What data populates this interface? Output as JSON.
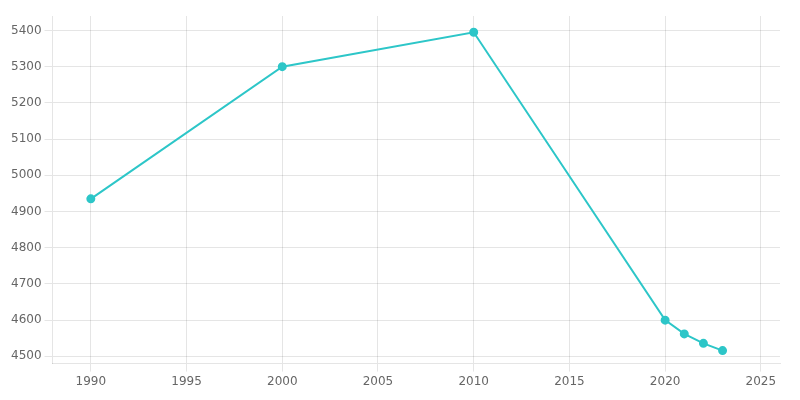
{
  "chart_data": {
    "type": "line",
    "x": [
      1990,
      2000,
      2010,
      2020,
      2021,
      2022,
      2023
    ],
    "values": [
      4935,
      5300,
      5395,
      4600,
      4562,
      4536,
      4516
    ],
    "color": "#2DC6C8",
    "marker": "circle",
    "xlim": [
      1988,
      2026
    ],
    "ylim": [
      4480,
      5440
    ],
    "xticks": [
      1990,
      1995,
      2000,
      2005,
      2010,
      2015,
      2020,
      2025
    ],
    "yticks": [
      4500,
      4600,
      4700,
      4800,
      4900,
      5000,
      5100,
      5200,
      5300,
      5400
    ],
    "grid": true
  }
}
